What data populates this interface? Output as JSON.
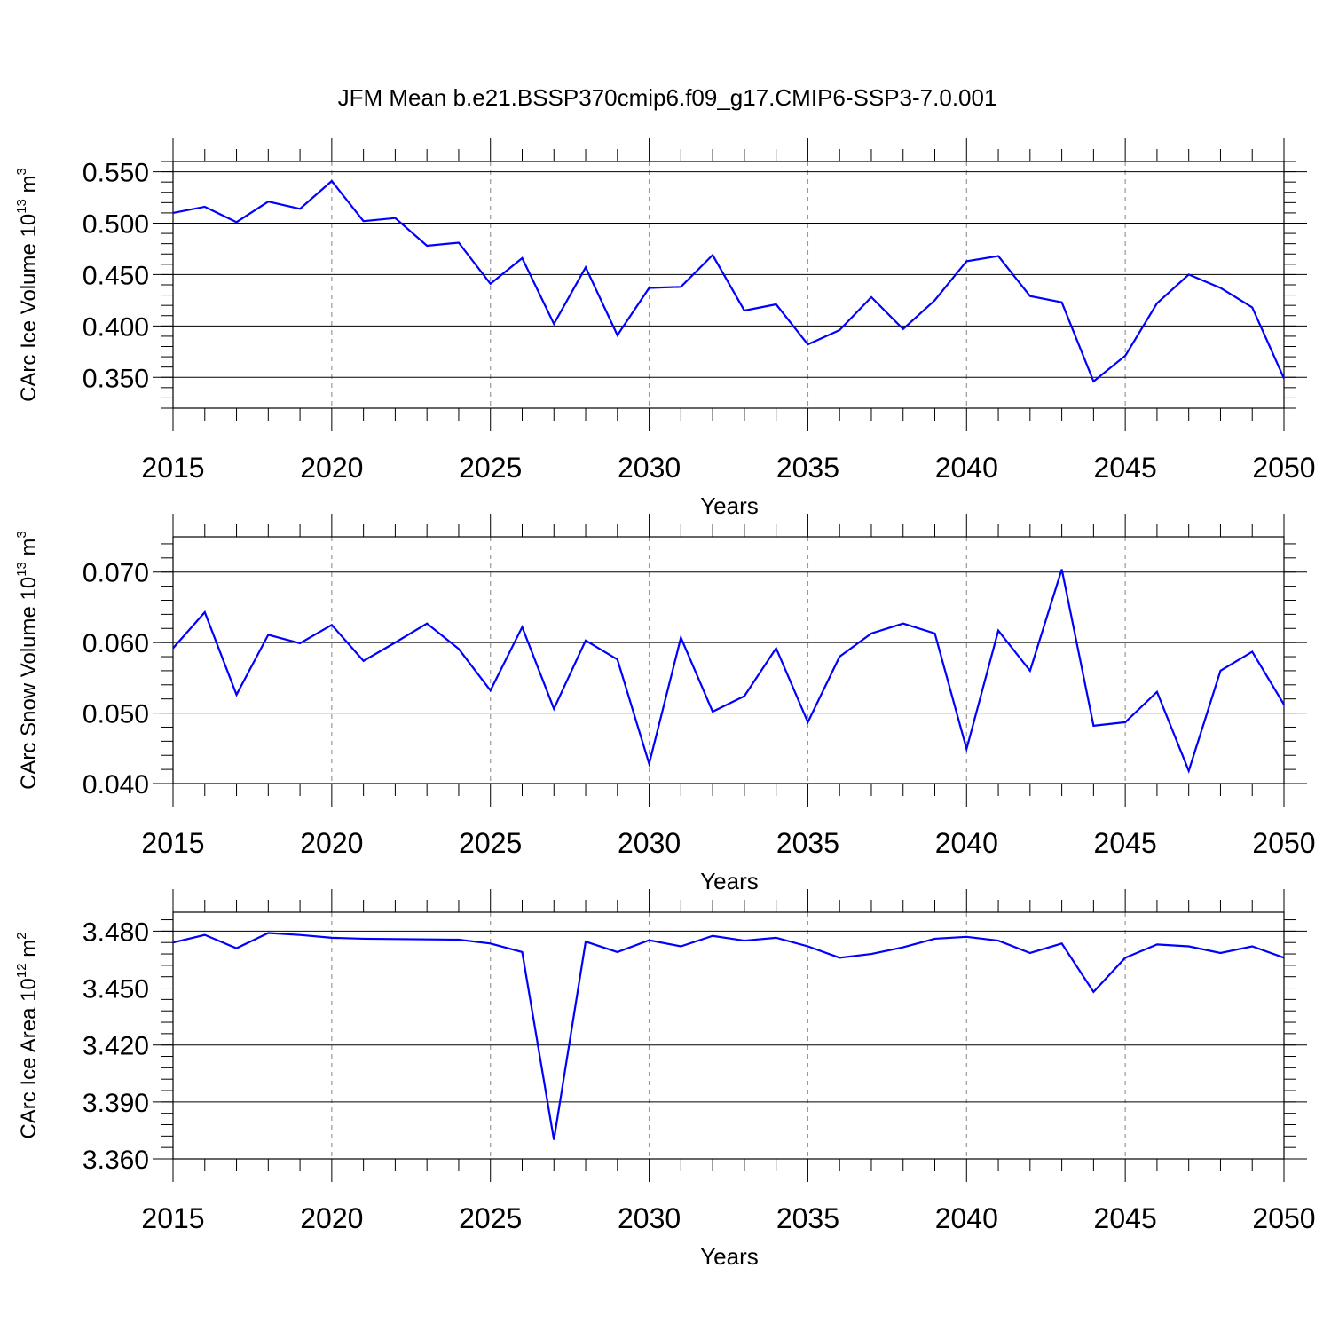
{
  "title": "JFM Mean b.e21.BSSP370cmip6.f09_g17.CMIP6-SSP3-7.0.001",
  "line_color": "#0000ff",
  "chart_data": [
    {
      "type": "line",
      "id": "ice-volume",
      "ylabel": {
        "main": "CArc Ice Volume 10",
        "sup1": "13",
        "unit": " m",
        "sup2": "3"
      },
      "xlabel": "Years",
      "xlim": [
        2015,
        2050
      ],
      "ylim": [
        0.32,
        0.56
      ],
      "x_ticks": [
        2015,
        2020,
        2025,
        2030,
        2035,
        2040,
        2045,
        2050
      ],
      "y_ticks": [
        0.35,
        0.4,
        0.45,
        0.5,
        0.55
      ],
      "y_tick_labels": [
        "0.350",
        "0.400",
        "0.450",
        "0.500",
        "0.550"
      ],
      "x": [
        2015,
        2016,
        2017,
        2018,
        2019,
        2020,
        2021,
        2022,
        2023,
        2024,
        2025,
        2026,
        2027,
        2028,
        2029,
        2030,
        2031,
        2032,
        2033,
        2034,
        2035,
        2036,
        2037,
        2038,
        2039,
        2040,
        2041,
        2042,
        2043,
        2044,
        2045,
        2046,
        2047,
        2048,
        2049,
        2050
      ],
      "values": [
        0.51,
        0.516,
        0.501,
        0.521,
        0.514,
        0.541,
        0.502,
        0.505,
        0.478,
        0.481,
        0.441,
        0.466,
        0.402,
        0.457,
        0.391,
        0.437,
        0.438,
        0.469,
        0.415,
        0.421,
        0.382,
        0.396,
        0.428,
        0.397,
        0.425,
        0.463,
        0.468,
        0.429,
        0.423,
        0.346,
        0.371,
        0.422,
        0.45,
        0.437,
        0.418,
        0.349
      ]
    },
    {
      "type": "line",
      "id": "snow-volume",
      "ylabel": {
        "main": "CArc Snow Volume 10",
        "sup1": "13",
        "unit": " m",
        "sup2": "3"
      },
      "xlabel": "Years",
      "xlim": [
        2015,
        2050
      ],
      "ylim": [
        0.04,
        0.075
      ],
      "x_ticks": [
        2015,
        2020,
        2025,
        2030,
        2035,
        2040,
        2045,
        2050
      ],
      "y_ticks": [
        0.04,
        0.05,
        0.06,
        0.07
      ],
      "y_tick_labels": [
        "0.040",
        "0.050",
        "0.060",
        "0.070"
      ],
      "x": [
        2015,
        2016,
        2017,
        2018,
        2019,
        2020,
        2021,
        2022,
        2023,
        2024,
        2025,
        2026,
        2027,
        2028,
        2029,
        2030,
        2031,
        2032,
        2033,
        2034,
        2035,
        2036,
        2037,
        2038,
        2039,
        2040,
        2041,
        2042,
        2043,
        2044,
        2045,
        2046,
        2047,
        2048,
        2049,
        2050
      ],
      "values": [
        0.0592,
        0.0643,
        0.0526,
        0.0611,
        0.0599,
        0.0625,
        0.0574,
        0.06,
        0.0627,
        0.0591,
        0.0532,
        0.0622,
        0.0506,
        0.0603,
        0.0576,
        0.0428,
        0.0607,
        0.0502,
        0.0524,
        0.0592,
        0.0487,
        0.058,
        0.0613,
        0.0627,
        0.0613,
        0.0449,
        0.0617,
        0.056,
        0.0704,
        0.0482,
        0.0487,
        0.053,
        0.0418,
        0.056,
        0.0587,
        0.0512
      ]
    },
    {
      "type": "line",
      "id": "ice-area",
      "ylabel": {
        "main": "CArc Ice Area 10",
        "sup1": "12",
        "unit": " m",
        "sup2": "2"
      },
      "xlabel": "Years",
      "xlim": [
        2015,
        2050
      ],
      "ylim": [
        3.36,
        3.49
      ],
      "x_ticks": [
        2015,
        2020,
        2025,
        2030,
        2035,
        2040,
        2045,
        2050
      ],
      "y_ticks": [
        3.36,
        3.39,
        3.42,
        3.45,
        3.48
      ],
      "y_tick_labels": [
        "3.360",
        "3.390",
        "3.420",
        "3.450",
        "3.480"
      ],
      "x": [
        2015,
        2016,
        2017,
        2018,
        2019,
        2020,
        2021,
        2024,
        2025,
        2026,
        2027,
        2028,
        2029,
        2030,
        2031,
        2032,
        2033,
        2034,
        2035,
        2036,
        2037,
        2038,
        2039,
        2040,
        2041,
        2042,
        2043,
        2044,
        2045,
        2046,
        2047,
        2048,
        2049,
        2050
      ],
      "values": [
        3.474,
        3.478,
        3.471,
        3.479,
        3.478,
        3.4765,
        3.476,
        3.4755,
        3.4735,
        3.469,
        3.37,
        3.4745,
        3.469,
        3.4752,
        3.472,
        3.4775,
        3.475,
        3.4765,
        3.472,
        3.466,
        3.468,
        3.4715,
        3.476,
        3.477,
        3.475,
        3.4685,
        3.4735,
        3.448,
        3.466,
        3.473,
        3.472,
        3.4685,
        3.472,
        3.466
      ]
    }
  ]
}
